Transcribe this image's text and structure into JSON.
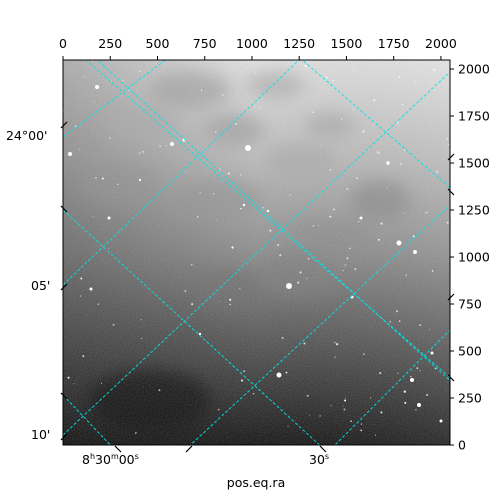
{
  "figure": {
    "kind": "astronomical-image",
    "colormap": "grayscale",
    "overlay_grid_color": "#00e5e5",
    "xlabel": "pos.eq.ra",
    "pixel_axis": {
      "top_ticks": [
        "0",
        "250",
        "500",
        "750",
        "1000",
        "1250",
        "1500",
        "1750",
        "2000"
      ],
      "right_ticks": [
        "2000",
        "1750",
        "1500",
        "1250",
        "1000",
        "750",
        "500",
        "250",
        "0"
      ],
      "xlim": [
        0,
        2048
      ],
      "ylim": [
        0,
        2048
      ]
    },
    "world_axis": {
      "dec_labels": [
        "24°00'",
        "05'",
        "10'"
      ],
      "ra_labels": [
        {
          "h": "8",
          "m": "30",
          "s": "00",
          "text": "8h30m00s"
        },
        {
          "s": "30",
          "text": "30s"
        }
      ]
    }
  }
}
